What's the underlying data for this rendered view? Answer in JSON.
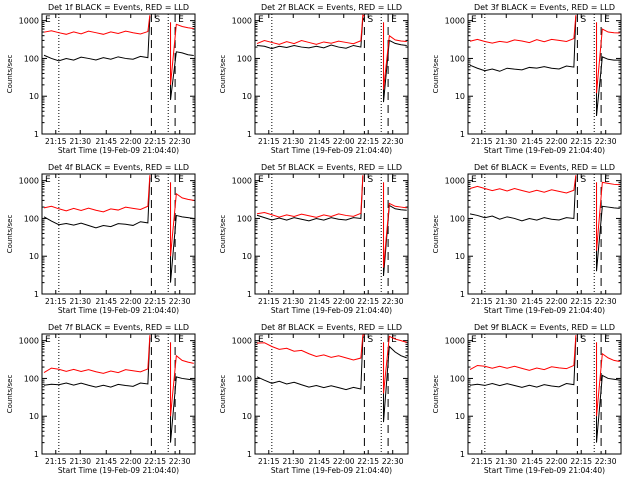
{
  "chart_data": [
    {
      "type": "line",
      "title": "Det 1f BLACK = Events, RED = LLD",
      "ylabel": "Counts/sec",
      "xlabel": "Start Time (19-Feb-09 21:04:40)",
      "xticks": [
        "21:15",
        "21:30",
        "21:45",
        "22:00",
        "22:15",
        "22:30"
      ],
      "yticks": [
        "1",
        "10",
        "100",
        "1000"
      ],
      "scale": "log",
      "ylim": [
        1,
        1500
      ],
      "markers": [
        "E",
        "S",
        "E"
      ],
      "series": [
        {
          "color": "#000000",
          "values": [
            110,
            100,
            95,
            95,
            95,
            98,
            100,
            100,
            100,
            100,
            100,
            100,
            105,
            108,
            110,
            1300,
            null,
            8,
            150,
            140,
            125,
            120
          ]
        },
        {
          "color": "#ff0000",
          "values": [
            520,
            490,
            480,
            480,
            480,
            470,
            480,
            480,
            480,
            480,
            480,
            480,
            480,
            490,
            490,
            1400,
            null,
            20,
            800,
            700,
            650,
            620
          ]
        }
      ]
    },
    {
      "type": "line",
      "title": "Det 2f BLACK = Events, RED = LLD",
      "ylabel": "Counts/sec",
      "xlabel": "Start Time (19-Feb-09 21:04:40)",
      "xticks": [
        "21:15",
        "21:30",
        "21:45",
        "22:00",
        "22:15",
        "22:30"
      ],
      "yticks": [
        "1",
        "10",
        "100",
        "1000"
      ],
      "scale": "log",
      "ylim": [
        1,
        1500
      ],
      "markers": [
        "E",
        "S",
        "E"
      ],
      "series": [
        {
          "color": "#000000",
          "values": [
            200,
            210,
            200,
            200,
            205,
            200,
            200,
            210,
            200,
            200,
            205,
            200,
            205,
            210,
            210,
            1200,
            1000,
            7,
            300,
            250,
            230,
            220
          ]
        },
        {
          "color": "#ff0000",
          "values": [
            260,
            270,
            265,
            260,
            265,
            260,
            270,
            265,
            260,
            260,
            265,
            260,
            265,
            270,
            280,
            1400,
            1300,
            15,
            400,
            310,
            290,
            280
          ]
        }
      ]
    },
    {
      "type": "line",
      "title": "Det 3f BLACK = Events, RED = LLD",
      "ylabel": "Counts/sec",
      "xlabel": "Start Time (19-Feb-09 21:04:40)",
      "xticks": [
        "21:15",
        "21:30",
        "21:45",
        "22:00",
        "22:15",
        "22:30"
      ],
      "yticks": [
        "1",
        "10",
        "100",
        "1000"
      ],
      "scale": "log",
      "ylim": [
        1,
        1500
      ],
      "markers": [
        "E",
        "S",
        "E"
      ],
      "series": [
        {
          "color": "#000000",
          "values": [
            60,
            55,
            52,
            50,
            48,
            50,
            52,
            55,
            55,
            58,
            55,
            55,
            58,
            60,
            62,
            1300,
            null,
            3,
            110,
            95,
            90,
            90
          ]
        },
        {
          "color": "#ff0000",
          "values": [
            300,
            290,
            280,
            280,
            270,
            280,
            280,
            290,
            290,
            300,
            290,
            290,
            300,
            310,
            320,
            1400,
            null,
            12,
            600,
            500,
            480,
            470
          ]
        }
      ]
    },
    {
      "type": "line",
      "title": "Det 4f BLACK = Events, RED = LLD",
      "ylabel": "Counts/sec",
      "xlabel": "Start Time (19-Feb-09 21:04:40)",
      "xticks": [
        "21:15",
        "21:30",
        "21:45",
        "22:00",
        "22:15",
        "22:30"
      ],
      "yticks": [
        "1",
        "10",
        "100",
        "1000"
      ],
      "scale": "log",
      "ylim": [
        1,
        1500
      ],
      "markers": [
        "E",
        "S",
        "E"
      ],
      "series": [
        {
          "color": "#000000",
          "values": [
            100,
            85,
            75,
            70,
            70,
            68,
            65,
            62,
            62,
            64,
            66,
            70,
            72,
            78,
            80,
            1200,
            null,
            2,
            120,
            110,
            105,
            100
          ]
        },
        {
          "color": "#ff0000",
          "values": [
            200,
            190,
            180,
            175,
            175,
            170,
            170,
            165,
            165,
            170,
            175,
            180,
            185,
            190,
            200,
            1400,
            null,
            10,
            450,
            350,
            320,
            300
          ]
        }
      ]
    },
    {
      "type": "line",
      "title": "Det 5f BLACK = Events, RED = LLD",
      "ylabel": "Counts/sec",
      "xlabel": "Start Time (19-Feb-09 21:04:40)",
      "xticks": [
        "21:15",
        "21:30",
        "21:45",
        "22:00",
        "22:15",
        "22:30"
      ],
      "yticks": [
        "1",
        "10",
        "100",
        "1000"
      ],
      "scale": "log",
      "ylim": [
        1,
        1500
      ],
      "markers": [
        "E",
        "S",
        "E"
      ],
      "series": [
        {
          "color": "#000000",
          "values": [
            110,
            105,
            100,
            98,
            95,
            95,
            95,
            95,
            95,
            95,
            95,
            95,
            100,
            100,
            105,
            1300,
            null,
            3,
            220,
            180,
            170,
            165
          ]
        },
        {
          "color": "#ff0000",
          "values": [
            140,
            130,
            125,
            120,
            118,
            118,
            118,
            118,
            118,
            118,
            118,
            120,
            120,
            125,
            130,
            1400,
            null,
            5,
            250,
            210,
            200,
            190
          ]
        }
      ]
    },
    {
      "type": "line",
      "title": "Det 6f BLACK = Events, RED = LLD",
      "ylabel": "Counts/sec",
      "xlabel": "Start Time (19-Feb-09 21:04:40)",
      "xticks": [
        "21:15",
        "21:30",
        "21:45",
        "22:00",
        "22:15",
        "22:30"
      ],
      "yticks": [
        "1",
        "10",
        "100",
        "1000"
      ],
      "scale": "log",
      "ylim": [
        1,
        1500
      ],
      "markers": [
        "E",
        "S",
        "E"
      ],
      "series": [
        {
          "color": "#000000",
          "values": [
            120,
            120,
            115,
            110,
            100,
            100,
            100,
            95,
            95,
            95,
            95,
            95,
            100,
            100,
            105,
            1300,
            null,
            4,
            210,
            200,
            190,
            185
          ]
        },
        {
          "color": "#ff0000",
          "values": [
            650,
            640,
            620,
            600,
            580,
            560,
            560,
            550,
            540,
            530,
            520,
            520,
            520,
            520,
            530,
            1400,
            null,
            14,
            900,
            850,
            800,
            780
          ]
        }
      ]
    },
    {
      "type": "line",
      "title": "Det 7f BLACK = Events, RED = LLD",
      "ylabel": "Counts/sec",
      "xlabel": "Start Time (19-Feb-09 21:04:40)",
      "xticks": [
        "21:15",
        "21:30",
        "21:45",
        "22:00",
        "22:15",
        "22:30"
      ],
      "yticks": [
        "1",
        "10",
        "100",
        "1000"
      ],
      "scale": "log",
      "ylim": [
        1,
        1500
      ],
      "markers": [
        "E",
        "S",
        "E"
      ],
      "series": [
        {
          "color": "#000000",
          "values": [
            60,
            70,
            75,
            72,
            70,
            68,
            66,
            65,
            63,
            62,
            63,
            65,
            68,
            72,
            75,
            1200,
            null,
            2,
            110,
            100,
            95,
            90
          ]
        },
        {
          "color": "#ff0000",
          "values": [
            150,
            170,
            175,
            170,
            165,
            160,
            155,
            150,
            150,
            150,
            150,
            155,
            160,
            165,
            170,
            1400,
            null,
            10,
            400,
            300,
            270,
            250
          ]
        }
      ]
    },
    {
      "type": "line",
      "title": "Det 8f BLACK = Events, RED = LLD",
      "ylabel": "Counts/sec",
      "xlabel": "Start Time (19-Feb-09 21:04:40)",
      "xticks": [
        "21:15",
        "21:30",
        "21:45",
        "22:00",
        "22:15",
        "22:30"
      ],
      "yticks": [
        "1",
        "10",
        "100",
        "1000"
      ],
      "scale": "log",
      "ylim": [
        1,
        1500
      ],
      "markers": [
        "E",
        "S",
        "E"
      ],
      "series": [
        {
          "color": "#000000",
          "values": [
            100,
            90,
            82,
            80,
            75,
            72,
            68,
            65,
            62,
            60,
            58,
            57,
            56,
            55,
            55,
            1200,
            1300,
            7,
            700,
            500,
            400,
            350
          ]
        },
        {
          "color": "#ff0000",
          "values": [
            900,
            800,
            700,
            650,
            600,
            550,
            500,
            450,
            420,
            400,
            380,
            360,
            350,
            340,
            330,
            1400,
            1400,
            40,
            1300,
            1100,
            1000,
            900
          ]
        }
      ]
    },
    {
      "type": "line",
      "title": "Det 9f BLACK = Events, RED = LLD",
      "ylabel": "Counts/sec",
      "xlabel": "Start Time (19-Feb-09 21:04:40)",
      "xticks": [
        "21:15",
        "21:30",
        "21:45",
        "22:00",
        "22:15",
        "22:30"
      ],
      "yticks": [
        "1",
        "10",
        "100",
        "1000"
      ],
      "scale": "log",
      "ylim": [
        1,
        1500
      ],
      "markers": [
        "E",
        "S",
        "E"
      ],
      "series": [
        {
          "color": "#000000",
          "values": [
            60,
            70,
            72,
            70,
            68,
            66,
            65,
            64,
            63,
            62,
            62,
            63,
            66,
            70,
            72,
            1200,
            null,
            2,
            120,
            100,
            95,
            90
          ]
        },
        {
          "color": "#ff0000",
          "values": [
            180,
            200,
            210,
            205,
            200,
            195,
            190,
            185,
            180,
            180,
            180,
            185,
            190,
            200,
            210,
            1400,
            null,
            10,
            450,
            350,
            300,
            280
          ]
        }
      ]
    }
  ]
}
